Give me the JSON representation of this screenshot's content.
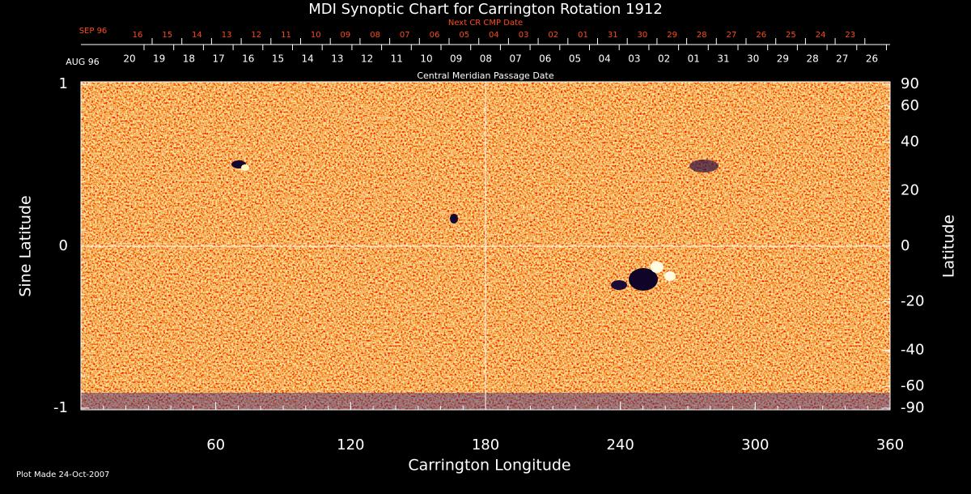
{
  "chart_data": {
    "type": "synoptic-map",
    "title": "MDI Synoptic Chart for Carrington Rotation 1912",
    "x_label": "Carrington Longitude",
    "y_label": "Sine Latitude",
    "y2_label": "Latitude",
    "xlim": [
      0,
      360
    ],
    "xticks": [
      60,
      120,
      180,
      240,
      300,
      360
    ],
    "ylim": [
      -1,
      1
    ],
    "yticks": [
      -1,
      0,
      1
    ],
    "y2lim": [
      -90,
      90
    ],
    "y2ticks": [
      90,
      60,
      40,
      20,
      0,
      -20,
      -40,
      -60,
      -90
    ],
    "y2scale": "sine",
    "reference_lines": {
      "x": 180,
      "y": 0
    },
    "next_cr_axis": {
      "label": "Next CR CMP Date",
      "month": "SEP 96",
      "color": "#ff4a1c",
      "dates": [
        "16",
        "15",
        "14",
        "13",
        "12",
        "11",
        "10",
        "09",
        "08",
        "07",
        "06",
        "05",
        "04",
        "03",
        "02",
        "01",
        "31",
        "30",
        "29",
        "28",
        "27",
        "26",
        "25",
        "24",
        "23"
      ]
    },
    "cmp_axis": {
      "label": "Central Meridian Passage Date",
      "month": "AUG 96",
      "dates": [
        "20",
        "19",
        "18",
        "17",
        "16",
        "15",
        "14",
        "13",
        "12",
        "11",
        "10",
        "09",
        "08",
        "07",
        "06",
        "05",
        "04",
        "03",
        "02",
        "01",
        "31",
        "30",
        "29",
        "28",
        "27",
        "26"
      ]
    },
    "footnote": "Plot Made 24-Oct-2007"
  }
}
